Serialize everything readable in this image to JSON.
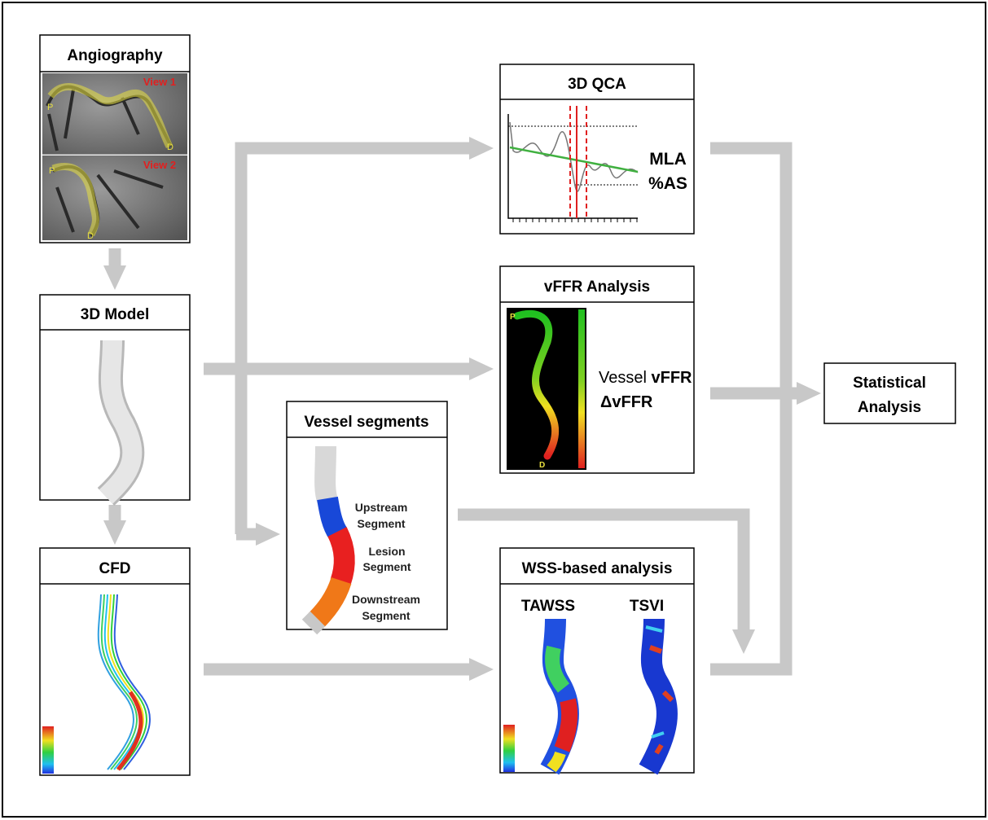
{
  "angiography": {
    "title": "Angiography",
    "view_labels": [
      "View 1",
      "View 2"
    ],
    "point_labels": [
      "P",
      "D",
      "P",
      "D"
    ]
  },
  "model": {
    "title": "3D Model"
  },
  "cfd": {
    "title": "CFD"
  },
  "qca": {
    "title": "3D QCA",
    "metrics": [
      "MLA",
      "%AS"
    ]
  },
  "vffr": {
    "title": "vFFR Analysis",
    "point_labels": [
      "P",
      "D"
    ],
    "metric_prefix": "Vessel",
    "metrics": [
      "vFFR",
      "ΔvFFR"
    ]
  },
  "segments": {
    "title": "Vessel segments",
    "labels": [
      [
        "Upstream",
        "Segment"
      ],
      [
        "Lesion",
        "Segment"
      ],
      [
        "Downstream",
        "Segment"
      ]
    ]
  },
  "wss": {
    "title": "WSS-based analysis",
    "maps": [
      "TAWSS",
      "TSVI"
    ]
  },
  "statistics": {
    "title": [
      "Statistical",
      "Analysis"
    ]
  }
}
